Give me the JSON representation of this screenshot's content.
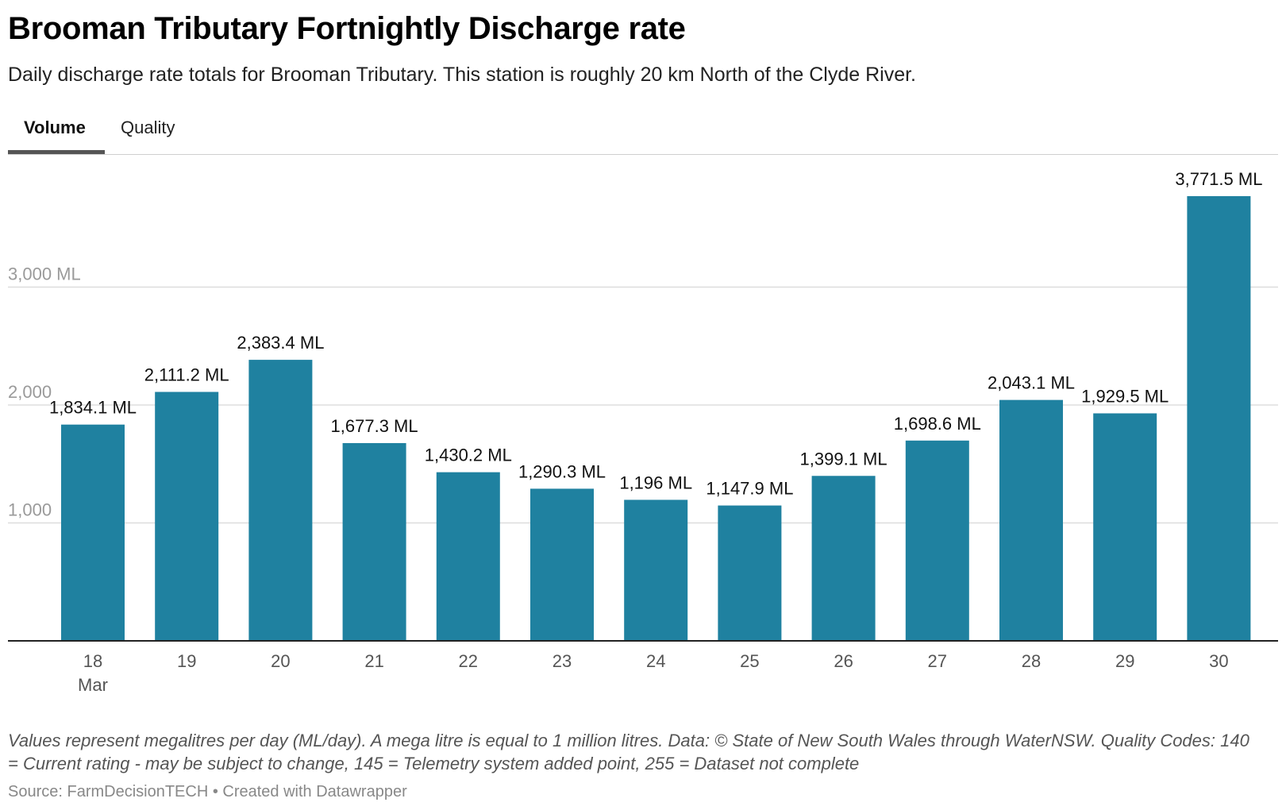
{
  "header": {
    "title": "Brooman Tributary Fortnightly Discharge rate",
    "subtitle": "Daily discharge rate totals for Brooman Tributary. This station is roughly 20 km North of the Clyde River."
  },
  "tabs": [
    {
      "label": "Volume",
      "active": true
    },
    {
      "label": "Quality",
      "active": false
    }
  ],
  "chart_data": {
    "type": "bar",
    "categories": [
      "18",
      "19",
      "20",
      "21",
      "22",
      "23",
      "24",
      "25",
      "26",
      "27",
      "28",
      "29",
      "30"
    ],
    "month_label": "Mar",
    "values": [
      1834.1,
      2111.2,
      2383.4,
      1677.3,
      1430.2,
      1290.3,
      1196,
      1147.9,
      1399.1,
      1698.6,
      2043.1,
      1929.5,
      3771.5
    ],
    "data_labels": [
      "1,834.1 ML",
      "2,111.2 ML",
      "2,383.4 ML",
      "1,677.3 ML",
      "1,430.2 ML",
      "1,290.3 ML",
      "1,196 ML",
      "1,147.9 ML",
      "1,399.1 ML",
      "1,698.6 ML",
      "2,043.1 ML",
      "1,929.5 ML",
      "3,771.5 ML"
    ],
    "y_ticks": [
      {
        "value": 1000,
        "label": "1,000"
      },
      {
        "value": 2000,
        "label": "2,000"
      },
      {
        "value": 3000,
        "label": "3,000 ML"
      }
    ],
    "ylim": [
      0,
      3771.5
    ],
    "bar_color": "#1f81a0",
    "grid": true,
    "legend": false
  },
  "footer": {
    "notes": "Values represent megalitres per day (ML/day). A mega litre is equal to 1 million litres. Data: © State of New South Wales through WaterNSW. Quality Codes: 140 = Current rating - may be subject to change, 145 = Telemetry system added point, 255 = Dataset not complete",
    "source": "Source: FarmDecisionTECH • Created with Datawrapper"
  }
}
